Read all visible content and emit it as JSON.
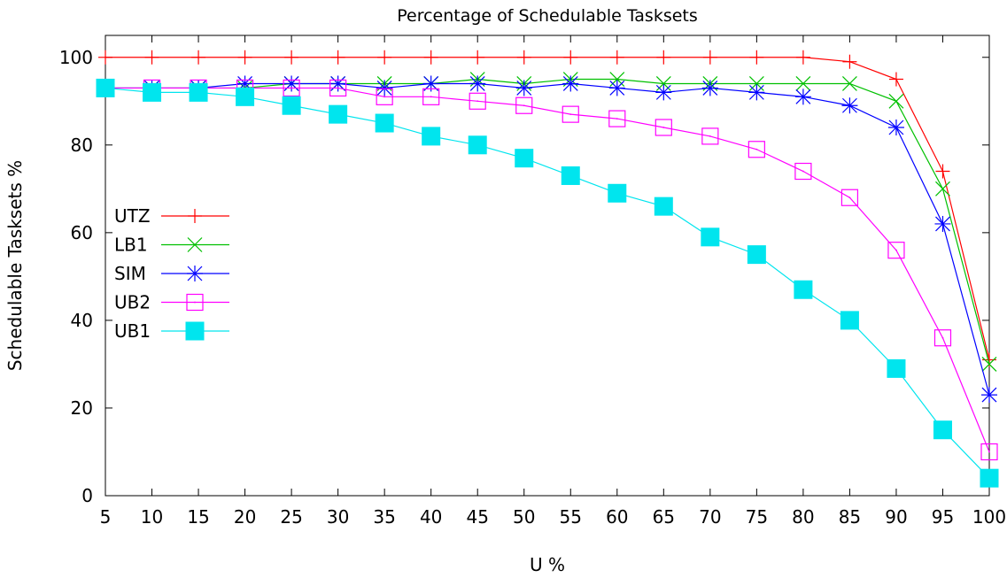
{
  "chart_data": {
    "type": "line",
    "title": "Percentage of Schedulable Tasksets",
    "xlabel": "U %",
    "ylabel": "Schedulable Tasksets %",
    "x": [
      5,
      10,
      15,
      20,
      25,
      30,
      35,
      40,
      45,
      50,
      55,
      60,
      65,
      70,
      75,
      80,
      85,
      90,
      95,
      100
    ],
    "xlim": [
      5,
      100
    ],
    "ylim": [
      0,
      105
    ],
    "yticks": [
      0,
      20,
      40,
      60,
      80,
      100
    ],
    "grid": false,
    "legend_position": "left",
    "series": [
      {
        "name": "UTZ",
        "color": "#ff0000",
        "marker": "plus",
        "values": [
          100,
          100,
          100,
          100,
          100,
          100,
          100,
          100,
          100,
          100,
          100,
          100,
          100,
          100,
          100,
          100,
          99,
          95,
          74,
          31
        ]
      },
      {
        "name": "LB1",
        "color": "#00c000",
        "marker": "cross",
        "values": [
          93,
          93,
          93,
          93,
          94,
          94,
          94,
          94,
          95,
          94,
          95,
          95,
          94,
          94,
          94,
          94,
          94,
          90,
          70,
          30
        ]
      },
      {
        "name": "SIM",
        "color": "#0000ff",
        "marker": "star",
        "values": [
          93,
          93,
          93,
          94,
          94,
          94,
          93,
          94,
          94,
          93,
          94,
          93,
          92,
          93,
          92,
          91,
          89,
          84,
          62,
          23
        ]
      },
      {
        "name": "UB2",
        "color": "#ff00ff",
        "marker": "open-square",
        "values": [
          93,
          93,
          93,
          93,
          93,
          93,
          91,
          91,
          90,
          89,
          87,
          86,
          84,
          82,
          79,
          74,
          68,
          56,
          36,
          10
        ]
      },
      {
        "name": "UB1",
        "color": "#00e5ee",
        "marker": "filled-square",
        "values": [
          93,
          92,
          92,
          91,
          89,
          87,
          85,
          82,
          80,
          77,
          73,
          69,
          66,
          59,
          55,
          47,
          40,
          29,
          15,
          4
        ]
      }
    ]
  }
}
